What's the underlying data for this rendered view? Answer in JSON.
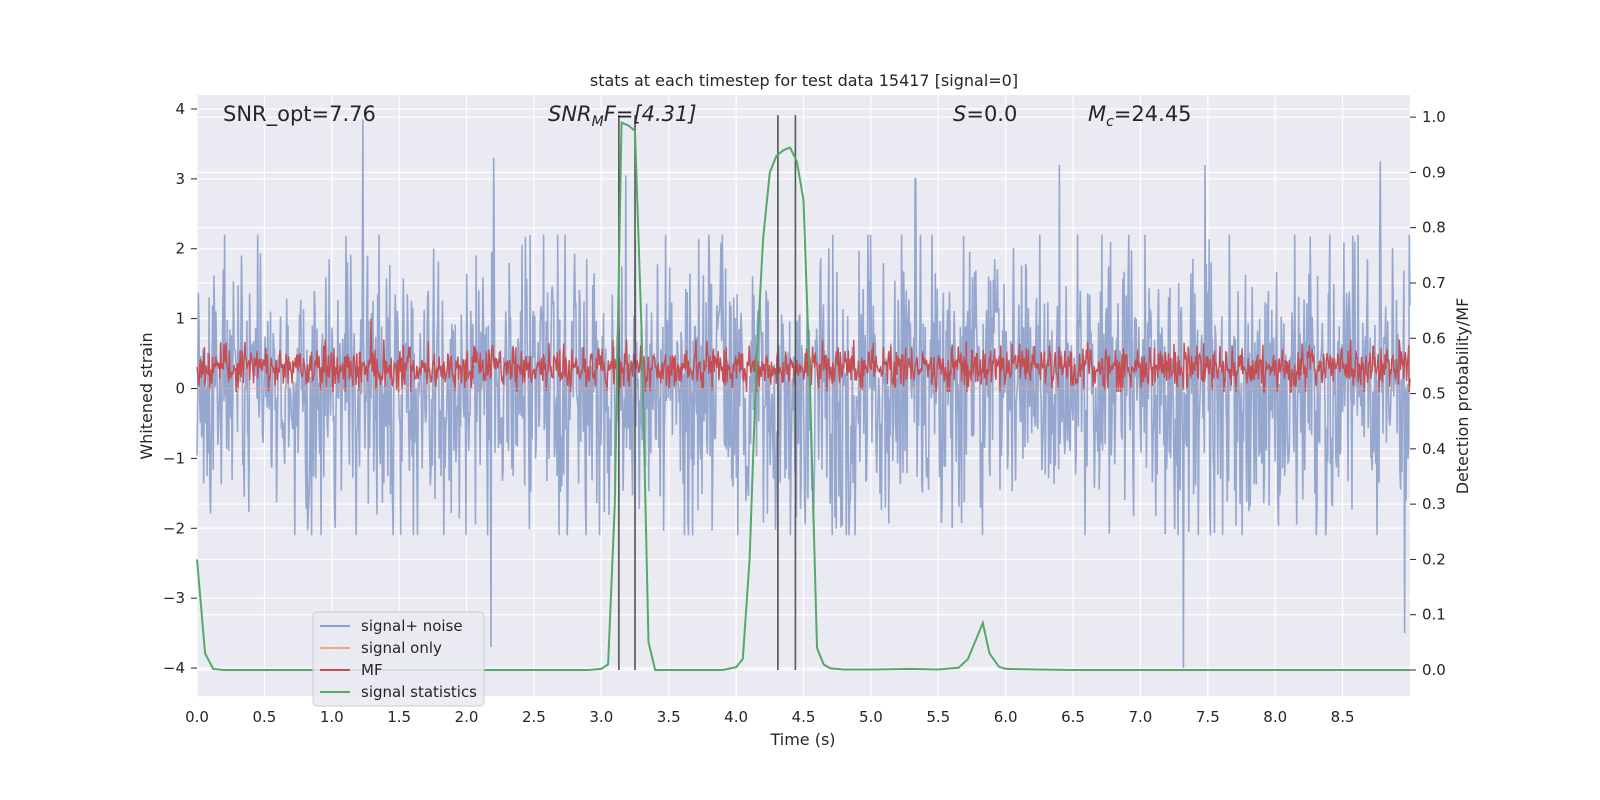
{
  "chart_data": {
    "type": "line",
    "title": "stats at each timestep for test data 15417 [signal=0]",
    "xlabel": "Time (s)",
    "ylabel_left": "Whitened strain",
    "ylabel_right": "Detection probability/MF",
    "xlim": [
      0,
      9.0
    ],
    "ylim_left": [
      -4.4,
      4.2
    ],
    "ylim_right": [
      -0.047,
      1.04
    ],
    "x_ticks": [
      0.0,
      0.5,
      1.0,
      1.5,
      2.0,
      2.5,
      3.0,
      3.5,
      4.0,
      4.5,
      5.0,
      5.5,
      6.0,
      6.5,
      7.0,
      7.5,
      8.0,
      8.5
    ],
    "x_tick_labels": [
      "0.0",
      "0.5",
      "1.0",
      "1.5",
      "2.0",
      "2.5",
      "3.0",
      "3.5",
      "4.0",
      "4.5",
      "5.0",
      "5.5",
      "6.0",
      "6.5",
      "7.0",
      "7.5",
      "8.0",
      "8.5"
    ],
    "y_left_ticks": [
      4,
      3,
      2,
      1,
      0,
      -1,
      -2,
      -3,
      -4
    ],
    "y_left_tick_labels": [
      "4",
      "3",
      "2",
      "1",
      "0",
      "−1",
      "−2",
      "−3",
      "−4"
    ],
    "y_right_ticks": [
      1.0,
      0.9,
      0.8,
      0.7,
      0.6,
      0.5,
      0.4,
      0.3,
      0.2,
      0.1,
      0.0
    ],
    "y_right_tick_labels": [
      "1.0",
      "0.9",
      "0.8",
      "0.7",
      "0.6",
      "0.5",
      "0.4",
      "0.3",
      "0.2",
      "0.1",
      "0.0"
    ],
    "grid": true,
    "legend_position": "lower-left",
    "annotations": {
      "snr_opt": "SNR_opt=7.76",
      "snr_mf_base": "SNR",
      "snr_mf_sub": "M",
      "snr_mf_rest": "F=[4.31]",
      "s_label": "S",
      "s_rest": "=0.0",
      "mc_base": "M",
      "mc_sub": "c",
      "mc_rest": "=24.45"
    },
    "vertical_lines_x": [
      3.13,
      3.25,
      4.31,
      4.44
    ],
    "series": [
      {
        "name": "signal+ noise",
        "axis": "left",
        "color": "#8da0cb",
        "style": "noise",
        "mean": 0.0,
        "typical_max": 2.2,
        "typical_min": -2.1,
        "n_points": 1800,
        "spikes": [
          {
            "x": 1.23,
            "y": 3.85
          },
          {
            "x": 2.18,
            "y": -3.7
          },
          {
            "x": 2.2,
            "y": 3.3
          },
          {
            "x": 3.18,
            "y": 3.05
          },
          {
            "x": 5.33,
            "y": 3.0
          },
          {
            "x": 6.4,
            "y": 3.2
          },
          {
            "x": 7.32,
            "y": -4.0
          },
          {
            "x": 7.48,
            "y": 3.2
          },
          {
            "x": 8.78,
            "y": 3.25
          },
          {
            "x": 8.96,
            "y": -3.5
          }
        ]
      },
      {
        "name": "signal only",
        "axis": "left",
        "color": "#f0a582",
        "style": "flat",
        "value": 0.0
      },
      {
        "name": "MF",
        "axis": "left",
        "color": "#c44e52",
        "style": "noise",
        "mean": 0.3,
        "typical_max": 0.7,
        "typical_min": -0.05,
        "n_points": 1800,
        "spikes": [
          {
            "x": 1.29,
            "y": 1.0
          }
        ]
      },
      {
        "name": "signal statistics",
        "axis": "right",
        "color": "#55a868",
        "style": "line",
        "x": [
          0.0,
          0.06,
          0.12,
          0.2,
          0.5,
          1.0,
          2.0,
          2.9,
          3.0,
          3.05,
          3.1,
          3.15,
          3.2,
          3.25,
          3.3,
          3.35,
          3.4,
          3.45,
          3.6,
          3.9,
          4.0,
          4.05,
          4.1,
          4.15,
          4.2,
          4.25,
          4.3,
          4.35,
          4.4,
          4.45,
          4.5,
          4.55,
          4.6,
          4.65,
          4.7,
          4.8,
          5.0,
          5.3,
          5.5,
          5.65,
          5.72,
          5.78,
          5.83,
          5.88,
          5.95,
          6.0,
          6.5,
          7.0,
          8.0,
          9.0
        ],
        "y": [
          0.2,
          0.03,
          0.002,
          0.0,
          0.0,
          0.0,
          0.0,
          0.0,
          0.002,
          0.01,
          0.3,
          0.99,
          0.985,
          0.975,
          0.6,
          0.05,
          0.0,
          0.0,
          0.0,
          0.0,
          0.005,
          0.02,
          0.2,
          0.55,
          0.78,
          0.9,
          0.93,
          0.94,
          0.945,
          0.92,
          0.85,
          0.5,
          0.04,
          0.01,
          0.003,
          0.001,
          0.001,
          0.002,
          0.001,
          0.004,
          0.02,
          0.055,
          0.085,
          0.03,
          0.006,
          0.002,
          0.0,
          0.0,
          0.0,
          0.0
        ]
      }
    ]
  }
}
